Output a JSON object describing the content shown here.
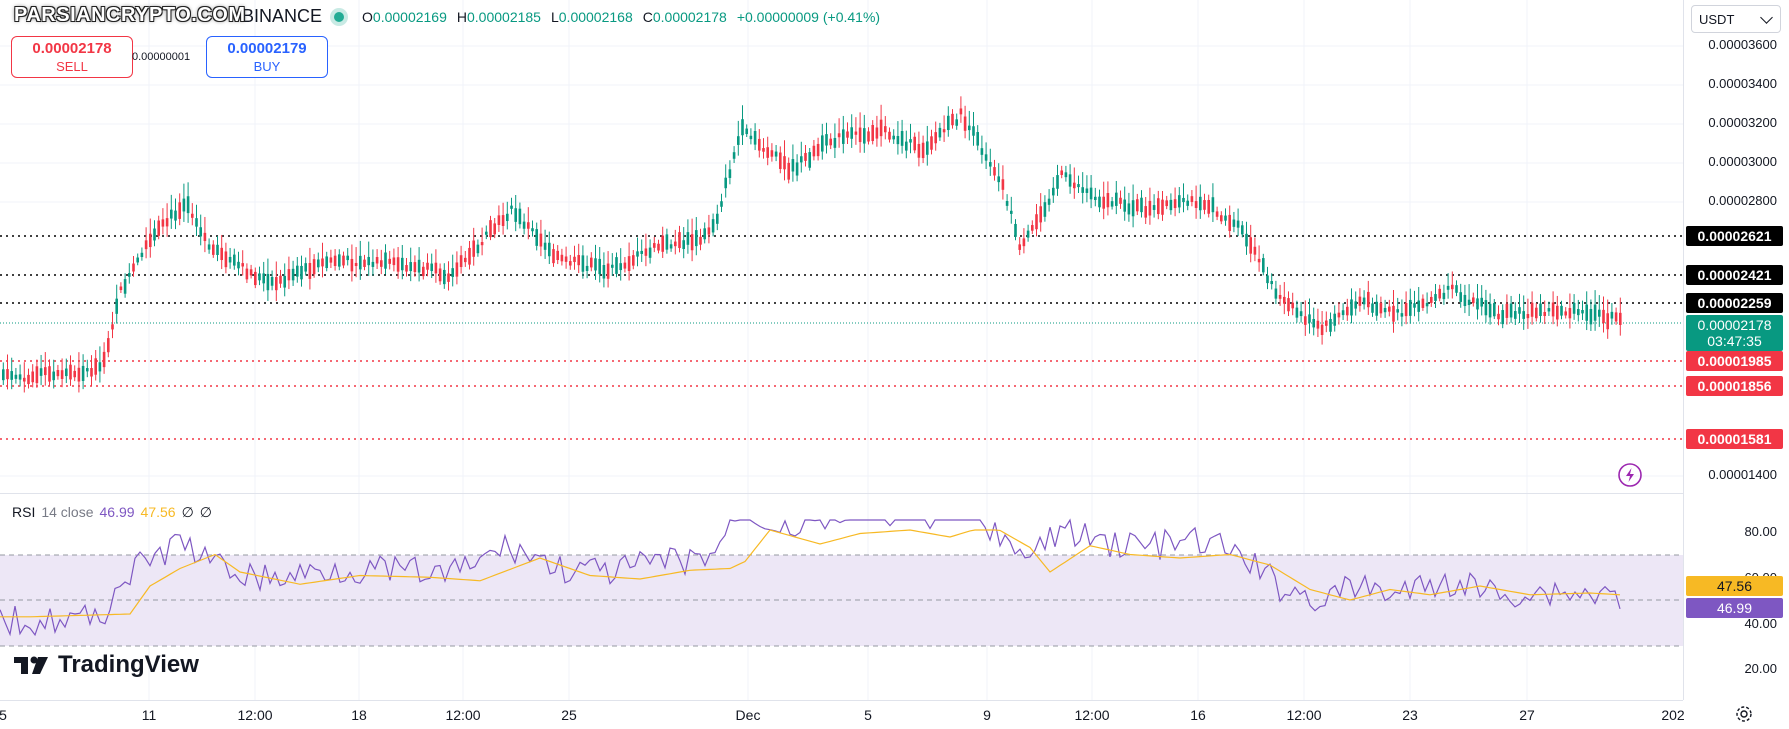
{
  "header": {
    "watermark": "PARSIANCRYPTO.COM",
    "exchange": "BINANCE",
    "ohlc": {
      "o_label": "O",
      "o": "0.00002169",
      "h_label": "H",
      "h": "0.00002185",
      "l_label": "L",
      "l": "0.00002168",
      "c_label": "C",
      "c": "0.00002178",
      "change": "+0.00000009 (+0.41%)"
    }
  },
  "trade": {
    "sell_price": "0.00002178",
    "sell_label": "SELL",
    "spread": "0.00000001",
    "buy_price": "0.00002179",
    "buy_label": "BUY"
  },
  "price_scale": {
    "currency": "USDT",
    "ticks": [
      "0.00003600",
      "0.00003400",
      "0.00003200",
      "0.00003000",
      "0.00002800",
      "0.00001400"
    ],
    "level_tags": [
      {
        "value": "0.00002621",
        "color": "#000000"
      },
      {
        "value": "0.00002421",
        "color": "#000000"
      },
      {
        "value": "0.00002259",
        "color": "#000000"
      },
      {
        "value": "0.00001985",
        "color": "#f23645"
      },
      {
        "value": "0.00001856",
        "color": "#f23645"
      },
      {
        "value": "0.00001581",
        "color": "#f23645"
      }
    ],
    "current": {
      "value": "0.00002178",
      "countdown": "03:47:35",
      "color": "#089981"
    }
  },
  "rsi": {
    "name": "RSI",
    "params": "14 close",
    "rsi_value": "46.99",
    "ma_value": "47.56",
    "empty1": "∅",
    "empty2": "∅",
    "ticks": [
      "80.00",
      "60.00",
      "40.00",
      "20.00"
    ],
    "rsi_tag": "46.99",
    "ma_tag": "47.56",
    "colors": {
      "rsi": "#7e57c2",
      "ma": "#f7b924",
      "band": "#ede7f6"
    }
  },
  "time_axis": [
    "5",
    "11",
    "12:00",
    "18",
    "12:00",
    "25",
    "Dec",
    "5",
    "9",
    "12:00",
    "16",
    "12:00",
    "23",
    "27",
    "202"
  ],
  "branding": {
    "logo_text": "TradingView"
  },
  "colors": {
    "up": "#089981",
    "down": "#f23645",
    "background": "#ffffff"
  }
}
